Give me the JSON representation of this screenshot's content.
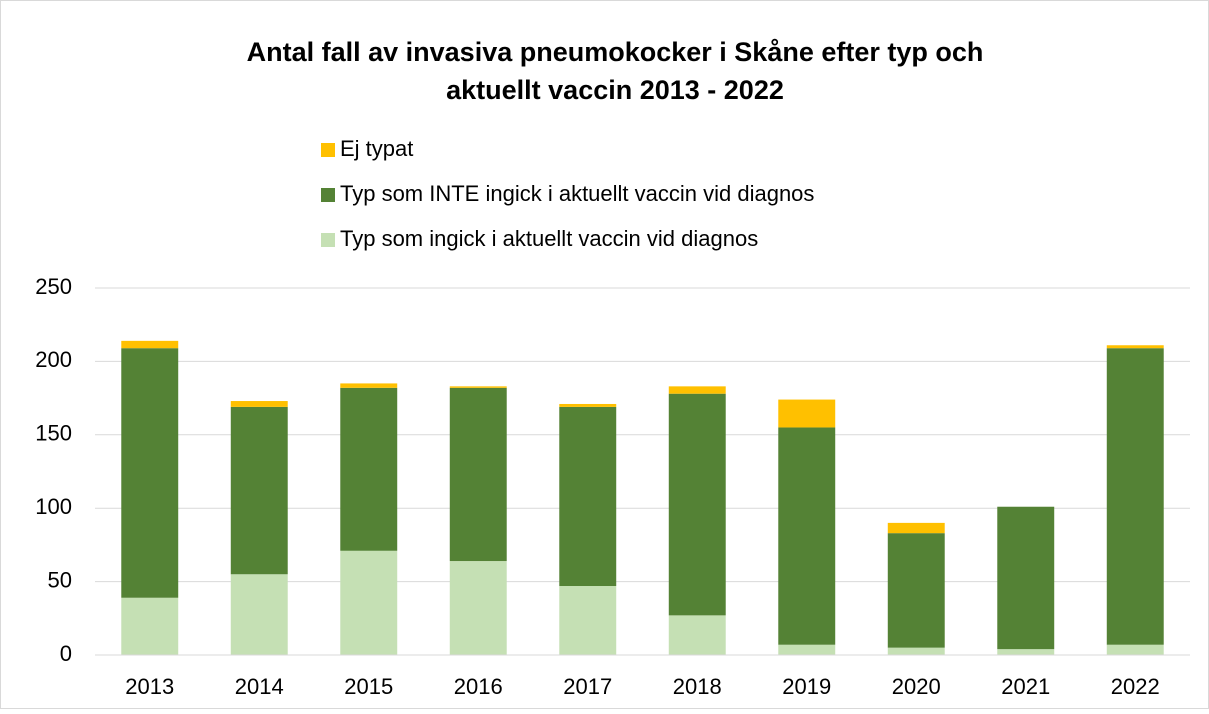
{
  "chart_data": {
    "type": "stacked_bar",
    "title": "Antal fall av invasiva pneumokocker i Skåne efter typ och aktuellt vaccin 2013 - 2022",
    "categories": [
      "2013",
      "2014",
      "2015",
      "2016",
      "2017",
      "2018",
      "2019",
      "2020",
      "2021",
      "2022"
    ],
    "series": [
      {
        "name": "Typ som ingick i aktuellt vaccin vid diagnos",
        "color": "#c5e0b4",
        "values": [
          39,
          55,
          71,
          64,
          47,
          27,
          7,
          5,
          4,
          7
        ]
      },
      {
        "name": "Typ som INTE ingick i aktuellt vaccin vid diagnos",
        "color": "#548235",
        "values": [
          170,
          114,
          111,
          118,
          122,
          151,
          148,
          78,
          97,
          202
        ]
      },
      {
        "name": "Ej typat",
        "color": "#ffc000",
        "values": [
          5,
          4,
          3,
          1,
          2,
          5,
          19,
          7,
          0,
          2
        ]
      }
    ],
    "ylim": [
      0,
      250
    ],
    "yticks": [
      0,
      50,
      100,
      150,
      200,
      250
    ],
    "grid": true,
    "legend": "top"
  }
}
